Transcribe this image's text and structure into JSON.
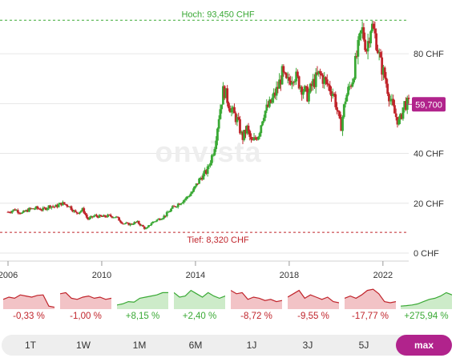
{
  "chart_data": {
    "type": "candlestick",
    "watermark": "onvista",
    "y_ticks": [
      {
        "v": 0,
        "label": "0 CHF"
      },
      {
        "v": 20,
        "label": "20 CHF"
      },
      {
        "v": 40,
        "label": "40 CHF"
      },
      {
        "v": 60,
        "label": "60 CHF"
      },
      {
        "v": 80,
        "label": "80 CHF"
      }
    ],
    "x_ticks": [
      {
        "v": 2006,
        "label": "2006"
      },
      {
        "v": 2010,
        "label": "2010"
      },
      {
        "v": 2014,
        "label": "2014"
      },
      {
        "v": 2018,
        "label": "2018"
      },
      {
        "v": 2022,
        "label": "2022"
      }
    ],
    "xlim": [
      2006,
      2023.1
    ],
    "ylim": [
      0,
      94.5
    ],
    "high": {
      "value": 93.45,
      "label": "Hoch: 93,450 CHF"
    },
    "low": {
      "value": 8.32,
      "label": "Tief: 8,320 CHF"
    },
    "last": {
      "value": 59.7,
      "label": "59,700"
    },
    "up_color": "#3aa935",
    "down_color": "#c0242b",
    "accent_color": "#b1238c",
    "series": [
      [
        2006.0,
        16.5
      ],
      [
        2006.3,
        17.5
      ],
      [
        2006.6,
        16.0
      ],
      [
        2006.9,
        17.5
      ],
      [
        2007.2,
        18.0
      ],
      [
        2007.5,
        17.5
      ],
      [
        2007.8,
        19.0
      ],
      [
        2008.0,
        18.5
      ],
      [
        2008.3,
        20.0
      ],
      [
        2008.6,
        19.0
      ],
      [
        2008.9,
        16.0
      ],
      [
        2009.2,
        17.5
      ],
      [
        2009.4,
        13.5
      ],
      [
        2009.7,
        15.0
      ],
      [
        2010.0,
        14.5
      ],
      [
        2010.3,
        15.0
      ],
      [
        2010.6,
        14.5
      ],
      [
        2010.9,
        12.0
      ],
      [
        2011.2,
        11.5
      ],
      [
        2011.5,
        12.5
      ],
      [
        2011.9,
        9.5
      ],
      [
        2012.1,
        12.0
      ],
      [
        2012.4,
        13.5
      ],
      [
        2012.7,
        15.0
      ],
      [
        2013.0,
        18.0
      ],
      [
        2013.3,
        20.0
      ],
      [
        2013.6,
        22.0
      ],
      [
        2013.9,
        25.0
      ],
      [
        2014.2,
        30.0
      ],
      [
        2014.5,
        33.0
      ],
      [
        2014.8,
        42.0
      ],
      [
        2015.0,
        55.0
      ],
      [
        2015.2,
        66.0
      ],
      [
        2015.5,
        58.0
      ],
      [
        2015.8,
        53.0
      ],
      [
        2016.0,
        46.0
      ],
      [
        2016.2,
        50.0
      ],
      [
        2016.4,
        44.0
      ],
      [
        2016.7,
        48.0
      ],
      [
        2016.9,
        56.0
      ],
      [
        2017.2,
        60.0
      ],
      [
        2017.5,
        66.0
      ],
      [
        2017.7,
        72.0
      ],
      [
        2017.9,
        68.0
      ],
      [
        2018.2,
        72.0
      ],
      [
        2018.5,
        67.0
      ],
      [
        2018.8,
        63.0
      ],
      [
        2019.0,
        68.0
      ],
      [
        2019.3,
        72.0
      ],
      [
        2019.6,
        68.0
      ],
      [
        2019.9,
        64.0
      ],
      [
        2020.2,
        50.0
      ],
      [
        2020.4,
        62.0
      ],
      [
        2020.7,
        70.0
      ],
      [
        2020.9,
        80.0
      ],
      [
        2021.1,
        90.0
      ],
      [
        2021.3,
        82.0
      ],
      [
        2021.5,
        92.0
      ],
      [
        2021.7,
        86.0
      ],
      [
        2021.9,
        76.0
      ],
      [
        2022.1,
        70.0
      ],
      [
        2022.3,
        62.0
      ],
      [
        2022.5,
        56.0
      ],
      [
        2022.7,
        52.0
      ],
      [
        2022.9,
        60.0
      ],
      [
        2023.1,
        59.7
      ]
    ]
  },
  "performance": [
    {
      "label": "-0,33 %",
      "trend": "down",
      "color": "#c0242b",
      "fill": "#f2c3c6",
      "points": [
        0.6,
        0.5,
        0.55,
        0.4,
        0.45,
        0.5,
        0.42,
        0.4,
        0.9,
        0.95
      ]
    },
    {
      "label": "-1,00 %",
      "trend": "down",
      "color": "#c0242b",
      "fill": "#f2c3c6",
      "points": [
        0.35,
        0.3,
        0.55,
        0.6,
        0.5,
        0.45,
        0.55,
        0.5,
        0.6,
        0.55
      ]
    },
    {
      "label": "+8,15 %",
      "trend": "up",
      "color": "#3aa935",
      "fill": "#cdebc9",
      "points": [
        0.85,
        0.8,
        0.7,
        0.72,
        0.55,
        0.5,
        0.45,
        0.4,
        0.3,
        0.3
      ]
    },
    {
      "label": "+2,40 %",
      "trend": "up",
      "color": "#3aa935",
      "fill": "#cdebc9",
      "points": [
        0.3,
        0.5,
        0.45,
        0.2,
        0.35,
        0.5,
        0.3,
        0.45,
        0.55,
        0.45
      ]
    },
    {
      "label": "-8,72 %",
      "trend": "down",
      "color": "#c0242b",
      "fill": "#f2c3c6",
      "points": [
        0.2,
        0.35,
        0.3,
        0.6,
        0.5,
        0.55,
        0.65,
        0.6,
        0.7,
        0.65
      ]
    },
    {
      "label": "-9,55 %",
      "trend": "down",
      "color": "#c0242b",
      "fill": "#f2c3c6",
      "points": [
        0.5,
        0.35,
        0.2,
        0.55,
        0.4,
        0.5,
        0.6,
        0.5,
        0.7,
        0.75
      ]
    },
    {
      "label": "-17,77 %",
      "trend": "down",
      "color": "#c0242b",
      "fill": "#f2c3c6",
      "points": [
        0.55,
        0.45,
        0.55,
        0.4,
        0.2,
        0.15,
        0.35,
        0.7,
        0.75,
        0.7
      ]
    },
    {
      "label": "+275,94 %",
      "trend": "up",
      "color": "#3aa935",
      "fill": "#cdebc9",
      "points": [
        0.9,
        0.88,
        0.85,
        0.8,
        0.7,
        0.6,
        0.55,
        0.45,
        0.3,
        0.4
      ]
    }
  ],
  "tabs": [
    {
      "label": "1T",
      "active": false
    },
    {
      "label": "1W",
      "active": false
    },
    {
      "label": "1M",
      "active": false
    },
    {
      "label": "6M",
      "active": false
    },
    {
      "label": "1J",
      "active": false
    },
    {
      "label": "3J",
      "active": false
    },
    {
      "label": "5J",
      "active": false
    },
    {
      "label": "max",
      "active": true
    }
  ]
}
